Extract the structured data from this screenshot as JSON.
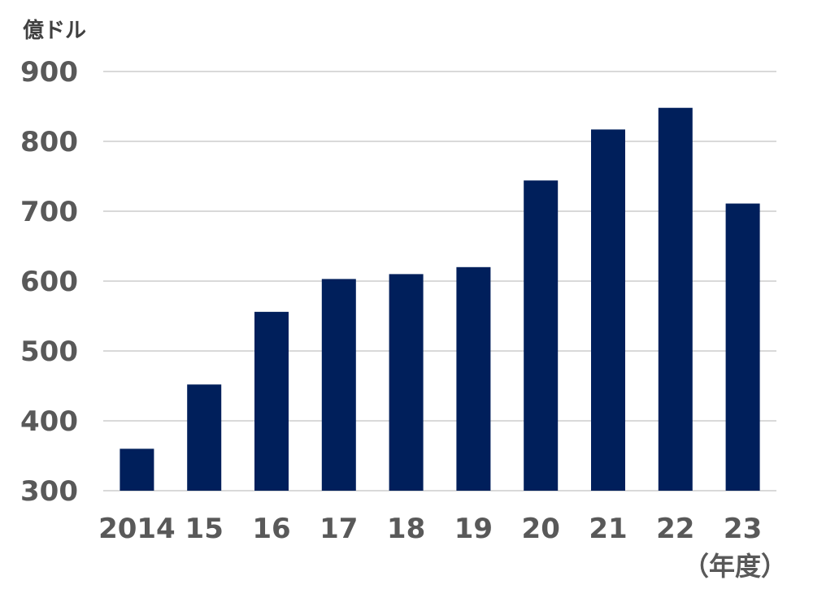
{
  "chart_data": {
    "type": "bar",
    "ylabel": "億ドル",
    "xlabel": "（年度）",
    "categories": [
      "2014",
      "15",
      "16",
      "17",
      "18",
      "19",
      "20",
      "21",
      "22",
      "23"
    ],
    "values": [
      360,
      452,
      556,
      603,
      610,
      620,
      744,
      817,
      848,
      711
    ],
    "ylim": [
      300,
      900
    ],
    "yticks": [
      "300",
      "400",
      "500",
      "600",
      "700",
      "800",
      "900"
    ],
    "grid": true,
    "legend": "none",
    "colors": {
      "bar": "#001f5b",
      "grid": "#d9d9d9",
      "tick_text": "#595959"
    }
  }
}
